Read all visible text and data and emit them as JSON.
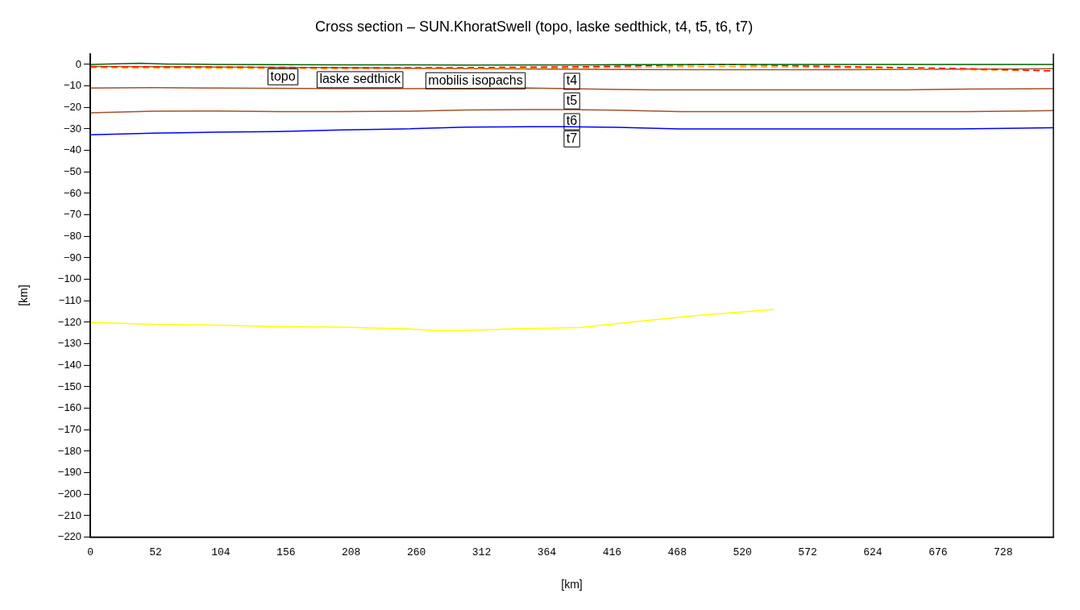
{
  "chart_data": {
    "type": "line",
    "title": "Cross section – SUN.KhoratSwell (topo, laske sedthick, t4, t5, t6, t7)",
    "xlabel": "[km]",
    "ylabel": "[km]",
    "xlim": [
      0,
      768
    ],
    "xticks": [
      0,
      52,
      104,
      156,
      208,
      260,
      312,
      364,
      416,
      468,
      520,
      572,
      624,
      676,
      728
    ],
    "ylim": [
      -220,
      5
    ],
    "yticks": [
      0,
      -10,
      -20,
      -30,
      -40,
      -50,
      -60,
      -70,
      -80,
      -90,
      -100,
      -110,
      -120,
      -130,
      -140,
      -150,
      -160,
      -170,
      -180,
      -190,
      -200,
      -210,
      -220
    ],
    "grid": false,
    "legend": false,
    "marker": "none",
    "series": [
      {
        "name": "topo",
        "color": "#006400",
        "line_style": "solid",
        "x": [
          0,
          20,
          40,
          60,
          100,
          200,
          300,
          400,
          500,
          600,
          700,
          768
        ],
        "values": [
          0,
          0.3,
          0.5,
          0.2,
          0,
          -0.2,
          -0.3,
          -0.2,
          0,
          0,
          0,
          0
        ]
      },
      {
        "name": "laske sedthick",
        "color": "#ff0000",
        "line_style": "dashed",
        "x": [
          0,
          100,
          200,
          300,
          400,
          450,
          500,
          550,
          600,
          700,
          768
        ],
        "values": [
          -1,
          -1.2,
          -1.5,
          -1.5,
          -1,
          -0.5,
          0,
          -0.5,
          -1,
          -2,
          -3
        ]
      },
      {
        "name": "mobilis isopachs",
        "color": "#ffa500",
        "line_style": "dashed",
        "x": [
          0,
          100,
          200,
          300,
          400,
          500,
          600,
          700,
          768
        ],
        "values": [
          -1.5,
          -1.8,
          -2,
          -2,
          -1.5,
          -1,
          -1.5,
          -2.5,
          -3
        ]
      },
      {
        "name": "t4",
        "color": "#a0522d",
        "line_style": "solid",
        "x": [
          0,
          100,
          200,
          300,
          400,
          500,
          600,
          700,
          768
        ],
        "values": [
          -1,
          -1.2,
          -1.5,
          -2,
          -2.3,
          -2.5,
          -2.5,
          -2.2,
          -2
        ]
      },
      {
        "name": "t5",
        "color": "#a0522d",
        "line_style": "solid",
        "x": [
          0,
          50,
          100,
          200,
          300,
          350,
          400,
          450,
          550,
          650,
          700,
          768
        ],
        "values": [
          -11,
          -10.8,
          -11,
          -11.3,
          -11.2,
          -11,
          -11.5,
          -11.8,
          -11.8,
          -11.8,
          -11.5,
          -11.3
        ]
      },
      {
        "name": "t6",
        "color": "#a0522d",
        "line_style": "solid",
        "x": [
          0,
          50,
          100,
          150,
          200,
          250,
          300,
          350,
          380,
          420,
          470,
          600,
          700,
          768
        ],
        "values": [
          -22.5,
          -21.8,
          -21.7,
          -22,
          -22,
          -21.8,
          -21.2,
          -21,
          -21,
          -21.3,
          -22,
          -22,
          -22,
          -21.5
        ]
      },
      {
        "name": "t7",
        "color": "#0000ff",
        "line_style": "solid",
        "x": [
          0,
          50,
          100,
          150,
          200,
          250,
          300,
          350,
          380,
          420,
          470,
          550,
          690,
          768
        ],
        "values": [
          -32.7,
          -32,
          -31.5,
          -31.2,
          -30.5,
          -30,
          -29.2,
          -29,
          -29,
          -29.3,
          -30,
          -30,
          -30,
          -29.5
        ]
      },
      {
        "color": "#ffff00",
        "line_style": "solid",
        "x": [
          0,
          50,
          100,
          150,
          200,
          250,
          280,
          300,
          340,
          390,
          430,
          480,
          545
        ],
        "values": [
          -120,
          -121,
          -121.3,
          -122,
          -122.3,
          -123,
          -124,
          -123.8,
          -123,
          -122.5,
          -120,
          -117,
          -114
        ]
      }
    ]
  }
}
